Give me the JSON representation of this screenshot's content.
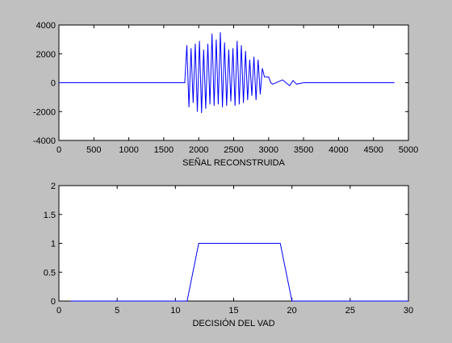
{
  "chart_data": [
    {
      "type": "line",
      "xlabel": "SEÑAL RECONSTRUIDA",
      "ylabel": "",
      "xlim": [
        0,
        5000
      ],
      "ylim": [
        -4000,
        4000
      ],
      "xticks": [
        0,
        500,
        1000,
        1500,
        2000,
        2500,
        3000,
        3500,
        4000,
        4500,
        5000
      ],
      "yticks": [
        -4000,
        -2000,
        0,
        2000,
        4000
      ],
      "grid": false,
      "line_color": "#0000ff",
      "series": [
        {
          "x": [
            0,
            1800,
            1830,
            1860,
            1890,
            1920,
            1950,
            1980,
            2010,
            2040,
            2070,
            2100,
            2130,
            2160,
            2190,
            2220,
            2250,
            2280,
            2310,
            2340,
            2370,
            2400,
            2430,
            2460,
            2490,
            2520,
            2550,
            2580,
            2610,
            2640,
            2670,
            2700,
            2730,
            2760,
            2790,
            2820,
            2850,
            2880,
            2910,
            2940,
            2970,
            3000,
            3030,
            3060,
            3200,
            3300,
            3350,
            3400,
            3500,
            4800
          ],
          "y": [
            0,
            0,
            2600,
            -1700,
            2400,
            -1400,
            2700,
            -2000,
            2900,
            -2100,
            2300,
            -1800,
            2700,
            -1500,
            3400,
            -1600,
            3000,
            -1500,
            3500,
            -1700,
            2800,
            -1600,
            2300,
            -1300,
            2400,
            -1600,
            2900,
            -1500,
            2600,
            -1400,
            2200,
            -1200,
            1600,
            -900,
            1800,
            -1200,
            1600,
            -800,
            1000,
            400,
            400,
            400,
            0,
            -100,
            200,
            -200,
            150,
            -100,
            0,
            0
          ]
        }
      ]
    },
    {
      "type": "line",
      "xlabel": "DECISIÓN DEL VAD",
      "ylabel": "",
      "xlim": [
        0,
        30
      ],
      "ylim": [
        0,
        2
      ],
      "xticks": [
        0,
        5,
        10,
        15,
        20,
        25,
        30
      ],
      "yticks": [
        0,
        0.5,
        1,
        1.5,
        2
      ],
      "grid": false,
      "line_color": "#0000ff",
      "series": [
        {
          "x": [
            1,
            11,
            12,
            19,
            20,
            30
          ],
          "y": [
            0,
            0,
            1,
            1,
            0,
            0
          ]
        }
      ]
    }
  ]
}
